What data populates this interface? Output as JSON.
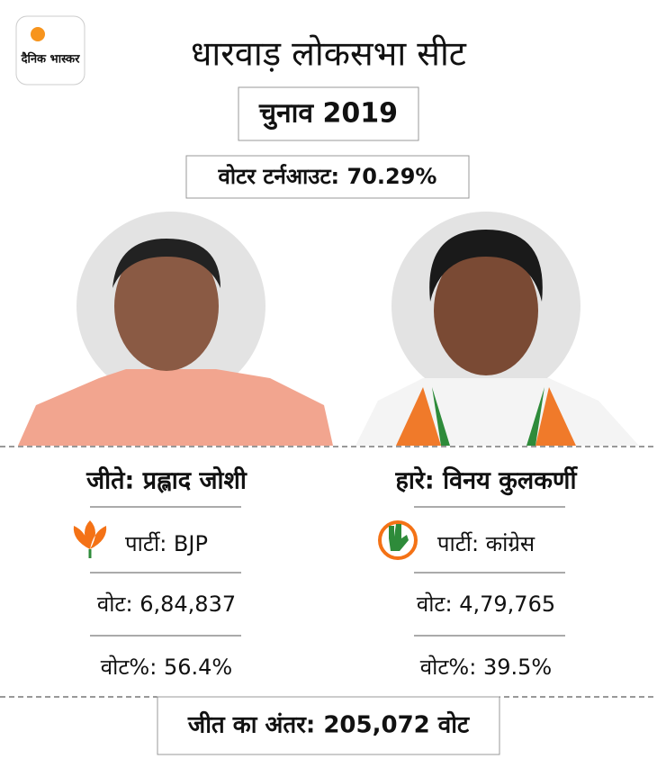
{
  "header": {
    "logo": "दैनिक भास्कर",
    "title": "धारवाड़ लोकसभा सीट",
    "subtitle": "चुनाव 2019",
    "turnout": "वोटर टर्नआउट: 70.29%"
  },
  "candidates": [
    {
      "label": "जीते: प्रह्लाद जोशी",
      "party": "पार्टी: BJP",
      "votes": "वोट: 6,84,837",
      "vote_share": "वोट%: 56.4%"
    },
    {
      "label": "हारे: विनय कुलकर्णी",
      "party": "पार्टी: कांग्रेस",
      "votes": "वोट: 4,79,765",
      "vote_share": "वोट%: 39.5%"
    }
  ],
  "footer": {
    "margin": "जीत का अंतर: 205,072 वोट"
  }
}
